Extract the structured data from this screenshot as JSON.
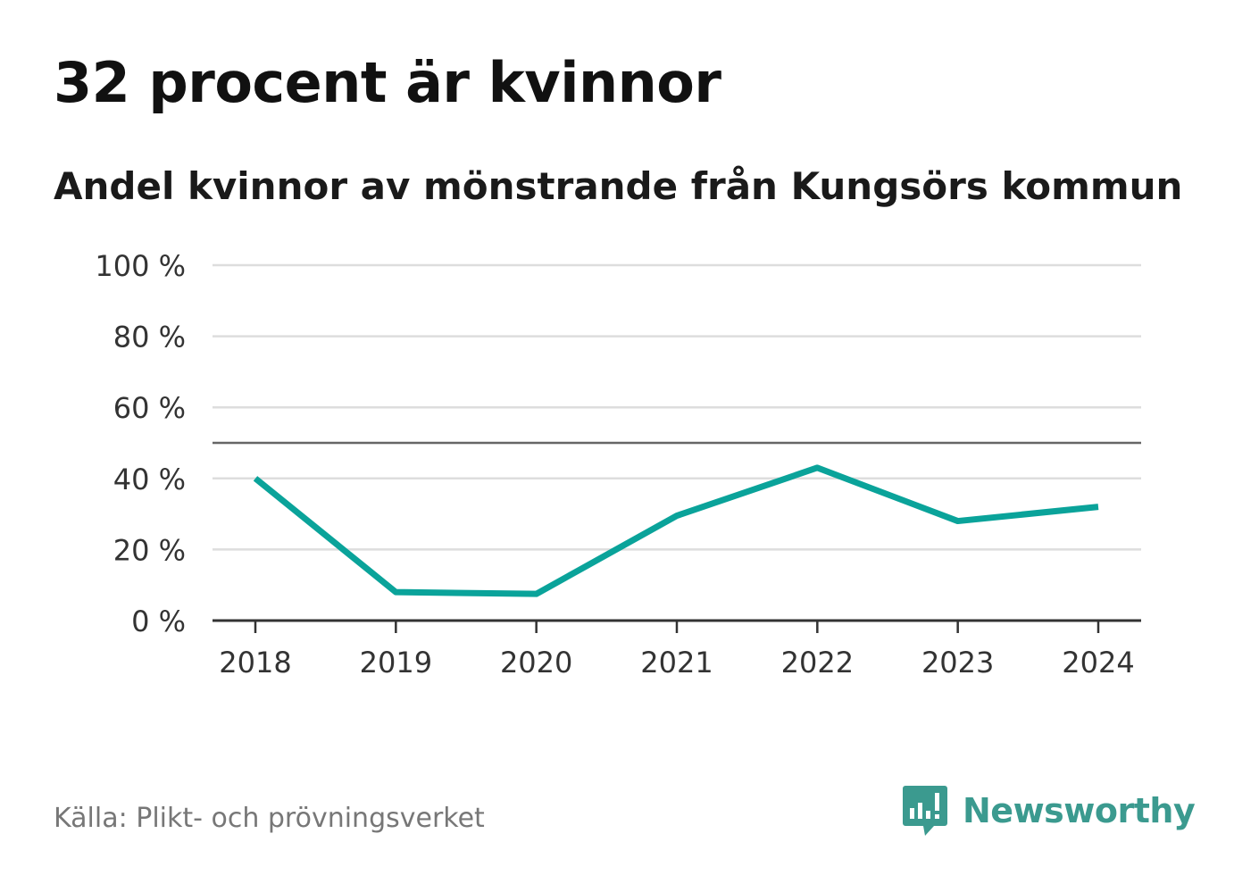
{
  "title": "32 procent är kvinnor",
  "subtitle": "Andel kvinnor av mönstrande från Kungsörs kommun",
  "source": "Källa: Plikt- och prövningsverket",
  "brand": {
    "name": "Newsworthy",
    "logo_icon": "bar-chart-speech-bubble-icon"
  },
  "colors": {
    "line": "#0aa39a",
    "grid": "#dddddd",
    "reference": "#666666",
    "axis": "#333333",
    "brand": "#3b9a8f"
  },
  "chart_data": {
    "type": "line",
    "title": "32 procent är kvinnor",
    "subtitle": "Andel kvinnor av mönstrande från Kungsörs kommun",
    "xlabel": "",
    "ylabel": "",
    "categories": [
      "2018",
      "2019",
      "2020",
      "2021",
      "2022",
      "2023",
      "2024"
    ],
    "series": [
      {
        "name": "Andel kvinnor",
        "values": [
          40,
          8,
          7.5,
          29.5,
          43,
          28,
          32
        ]
      }
    ],
    "ylim": [
      0,
      100
    ],
    "yticks": [
      0,
      20,
      40,
      60,
      80,
      100
    ],
    "ytick_labels": [
      "0 %",
      "20 %",
      "40 %",
      "60 %",
      "80 %",
      "100 %"
    ],
    "reference_line": 50,
    "grid": true,
    "legend": "none"
  }
}
